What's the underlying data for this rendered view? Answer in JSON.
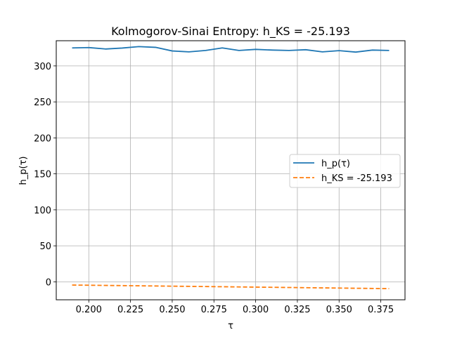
{
  "chart_data": {
    "type": "line",
    "title": "Kolmogorov-Sinai Entropy: h_KS = -25.193",
    "xlabel": "τ",
    "ylabel": "h_p(τ)",
    "xlim": [
      0.1805,
      0.3895
    ],
    "ylim": [
      -25,
      335
    ],
    "xticks": [
      0.2,
      0.225,
      0.25,
      0.275,
      0.3,
      0.325,
      0.35,
      0.375
    ],
    "xtick_labels": [
      "0.200",
      "0.225",
      "0.250",
      "0.275",
      "0.300",
      "0.325",
      "0.350",
      "0.375"
    ],
    "yticks": [
      0,
      50,
      100,
      150,
      200,
      250,
      300
    ],
    "ytick_labels": [
      "0",
      "50",
      "100",
      "150",
      "200",
      "250",
      "300"
    ],
    "grid": true,
    "legend_position": "center-right",
    "series": [
      {
        "name": "h_p(τ)",
        "style": "solid",
        "color": "#1f77b4",
        "x": [
          0.19,
          0.2,
          0.21,
          0.22,
          0.23,
          0.24,
          0.25,
          0.26,
          0.27,
          0.28,
          0.29,
          0.3,
          0.31,
          0.32,
          0.33,
          0.34,
          0.35,
          0.36,
          0.37,
          0.38
        ],
        "y": [
          325,
          325.5,
          323.5,
          324.8,
          326.8,
          325.8,
          320.8,
          319.5,
          321.5,
          325,
          321.5,
          323,
          322,
          321.5,
          322.5,
          319.5,
          321.2,
          319.2,
          322,
          321.5
        ]
      },
      {
        "name": "h_KS = -25.193",
        "style": "dashed",
        "color": "#ff7f0e",
        "x": [
          0.19,
          0.38
        ],
        "y": [
          -4.5,
          -9.5
        ]
      }
    ]
  }
}
